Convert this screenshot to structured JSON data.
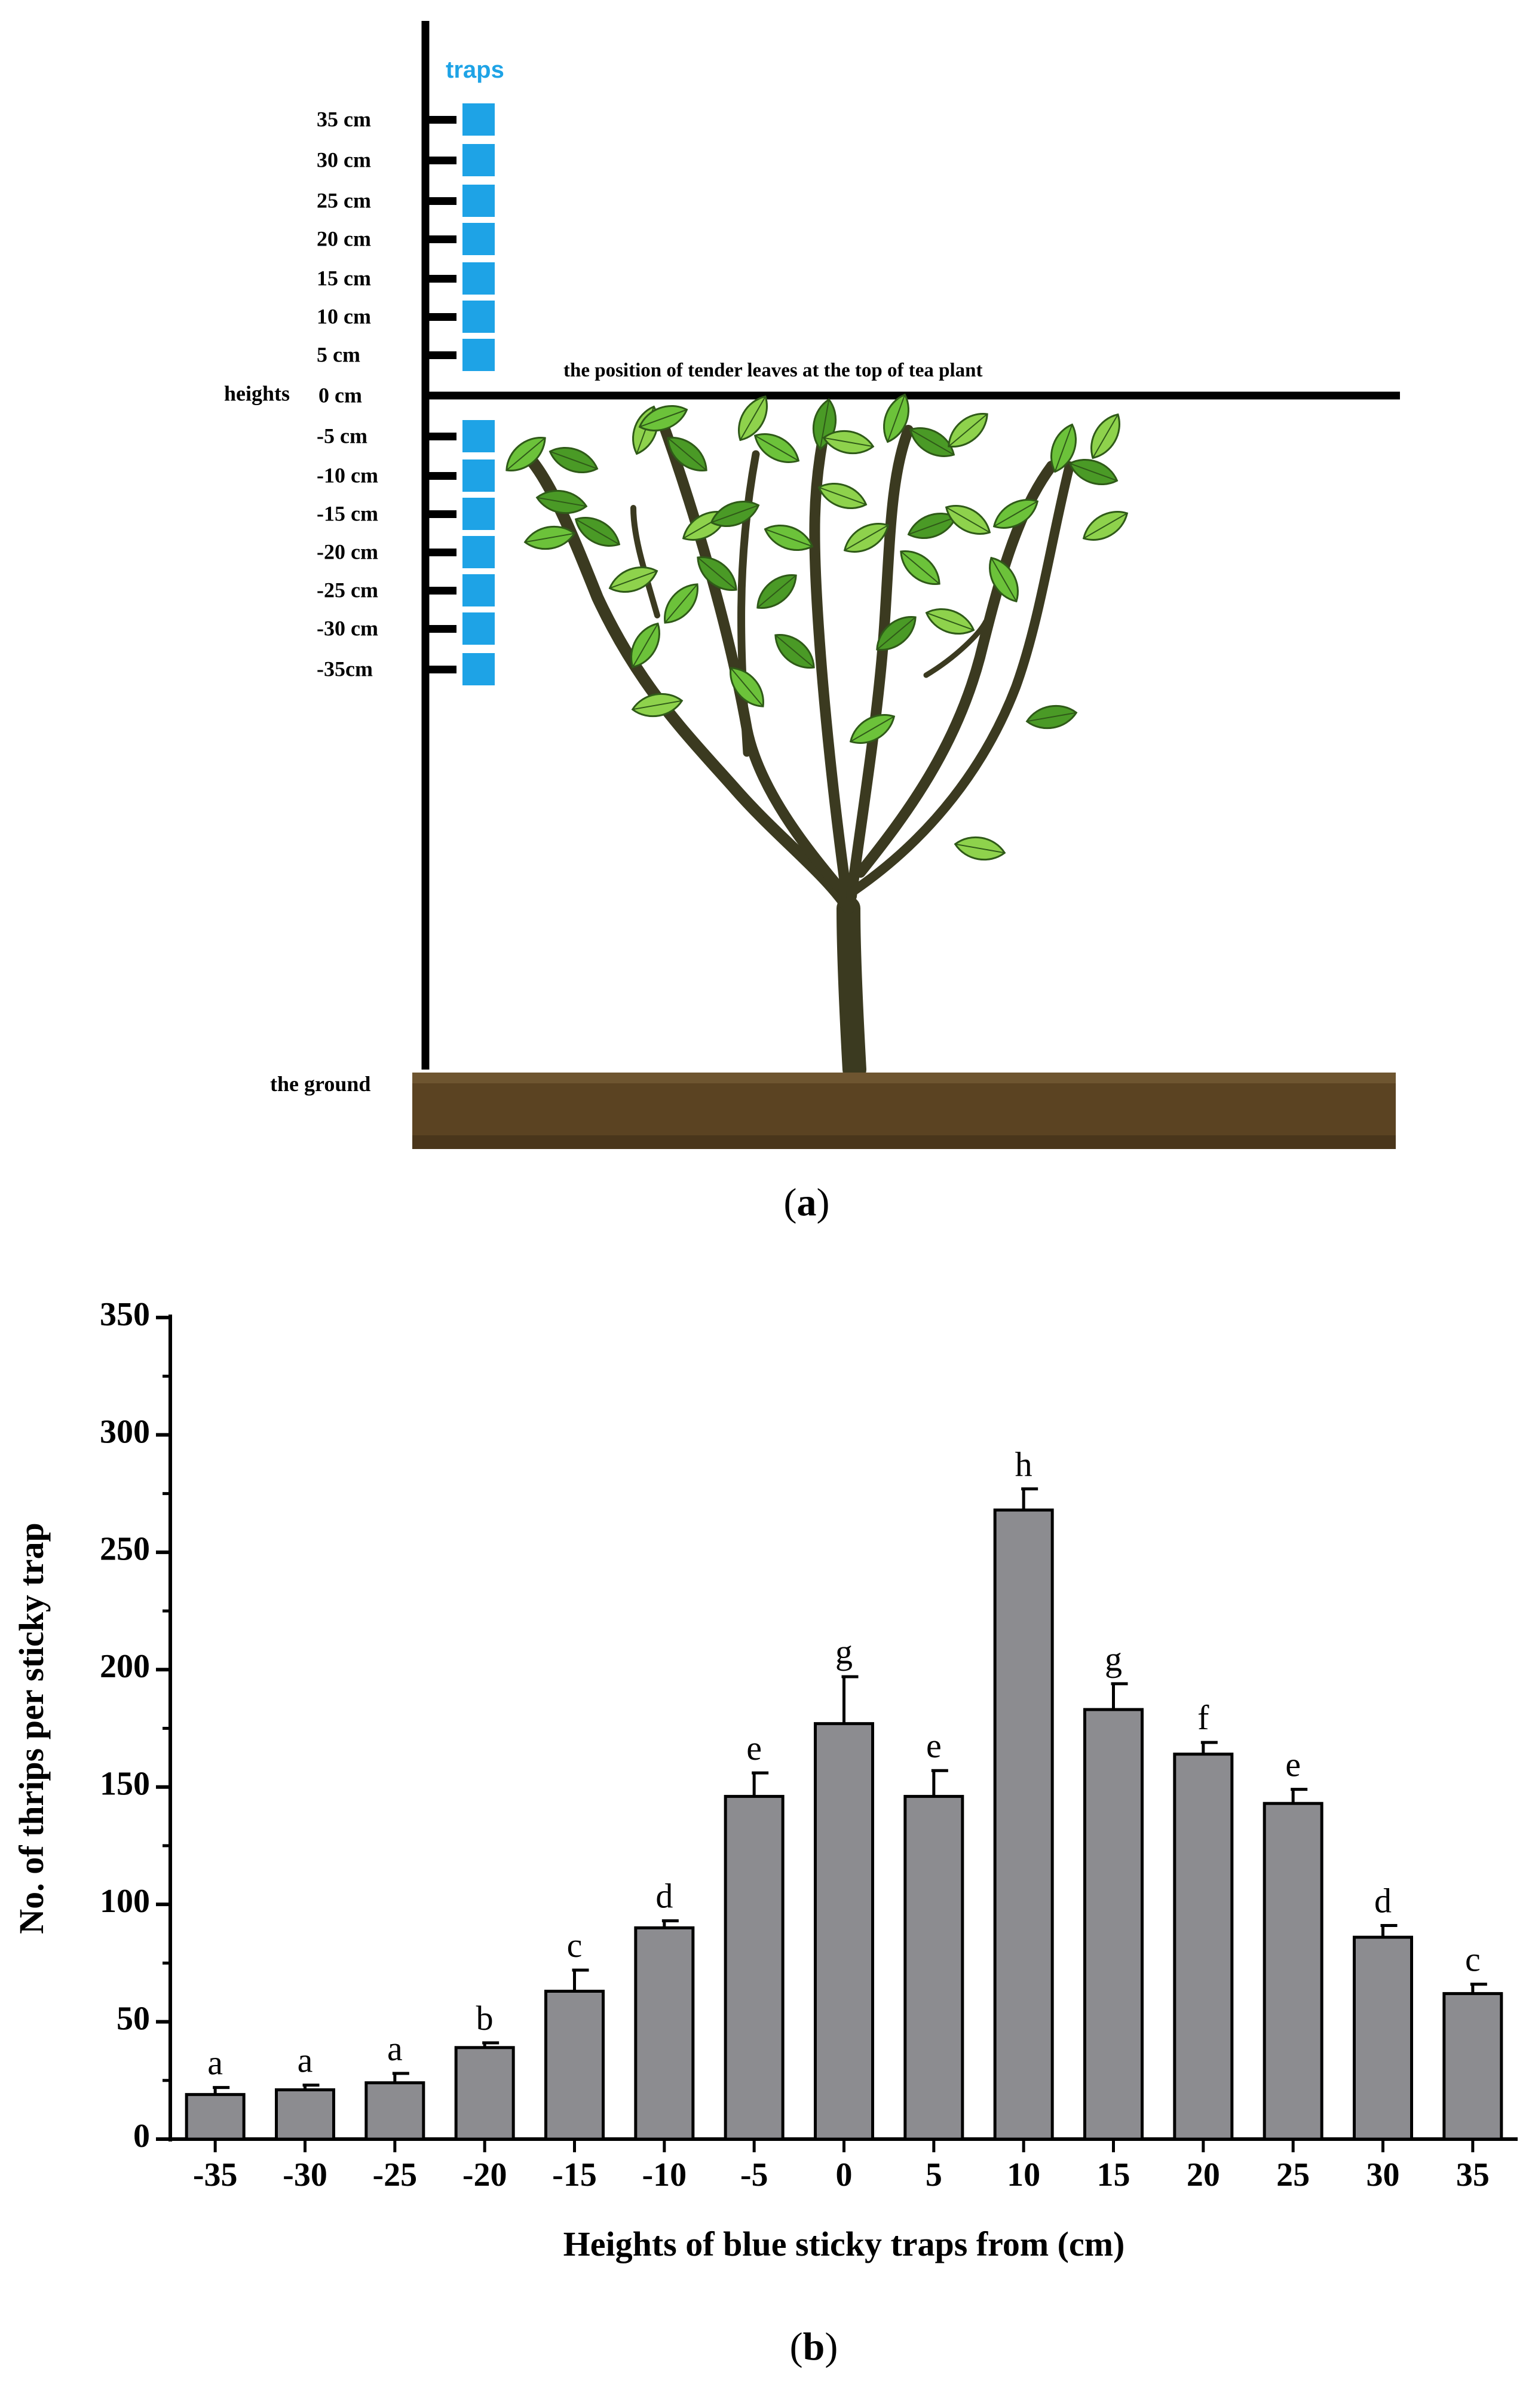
{
  "panel_a": {
    "label": "a",
    "traps_label": "traps",
    "heights_label": "heights",
    "height_labels_above": [
      "35 cm",
      "30 cm",
      "25 cm",
      "20 cm",
      "15 cm",
      "10 cm",
      "5 cm"
    ],
    "zero_label": "0 cm",
    "height_labels_below": [
      "-5 cm",
      "-10 cm",
      "-15 cm",
      "-20 cm",
      "-25 cm",
      "-30 cm",
      "-35cm"
    ],
    "canopy_line_label": "the position of tender leaves at the top of tea plant",
    "ground_label": "the ground",
    "colors": {
      "trap": "#1ea3e6",
      "soil": "#5b4322",
      "trunk": "#3c3a22",
      "leaf": "#4a9a26"
    }
  },
  "panel_b": {
    "label": "b"
  },
  "chart_data": {
    "type": "bar",
    "title": "",
    "xlabel": "Heights of blue sticky traps from (cm)",
    "ylabel": "No. of thrips per sticky trap",
    "ylim": [
      0,
      350
    ],
    "yticks": [
      0,
      50,
      100,
      150,
      200,
      250,
      300,
      350
    ],
    "categories": [
      "-35",
      "-30",
      "-25",
      "-20",
      "-15",
      "-10",
      "-5",
      "0",
      "5",
      "10",
      "15",
      "20",
      "25",
      "30",
      "35"
    ],
    "values": [
      19,
      21,
      24,
      39,
      63,
      90,
      146,
      177,
      146,
      268,
      183,
      164,
      143,
      86,
      62
    ],
    "errors": [
      3,
      2,
      4,
      2,
      9,
      3,
      10,
      20,
      11,
      9,
      11,
      5,
      6,
      5,
      4
    ],
    "letters": [
      "a",
      "a",
      "a",
      "b",
      "c",
      "d",
      "e",
      "g",
      "e",
      "h",
      "g",
      "f",
      "e",
      "d",
      "c"
    ],
    "bar_color": "#8c8c90",
    "grid": false
  }
}
